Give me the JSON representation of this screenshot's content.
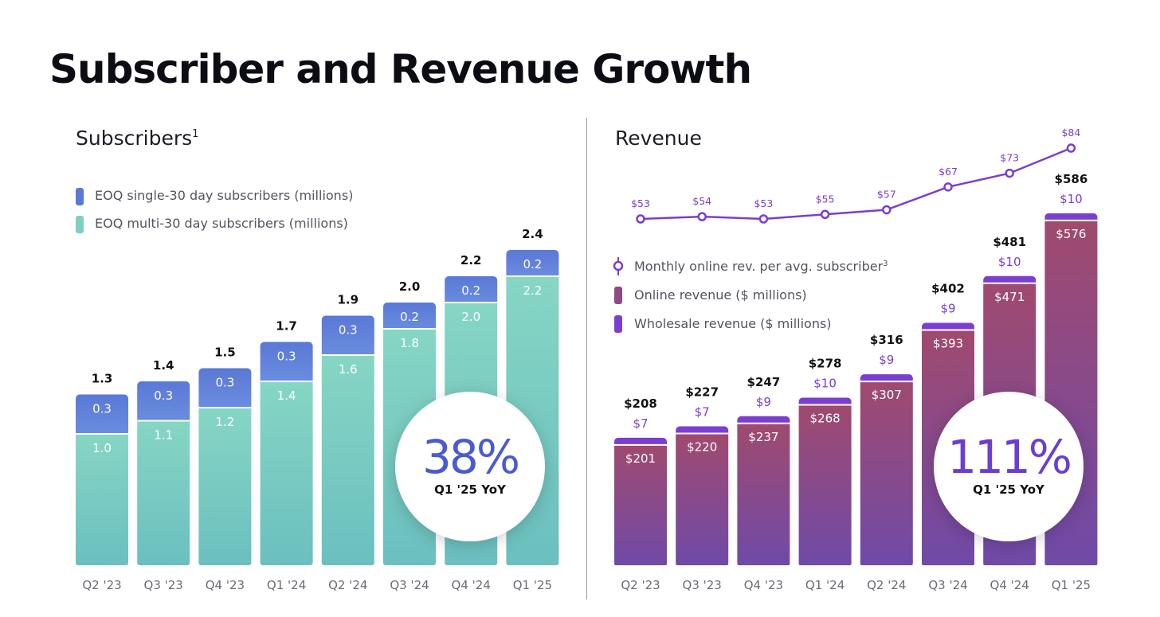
{
  "page": {
    "title": "Subscriber and Revenue Growth"
  },
  "colors": {
    "single_top": "#5a78d6",
    "single_bottom": "#6c8fe0",
    "multi_top": "#86d6c4",
    "multi_bottom": "#6bbfbf",
    "online_top": "#a04a6e",
    "online_bottom": "#6f4aa8",
    "wholesale": "#7b3ed0",
    "line": "#7b3ed0",
    "pct_subscribers": "#4a5ad0",
    "pct_revenue": "#6b3ed0"
  },
  "chart_data": [
    {
      "type": "bar",
      "stacked": true,
      "title": "Subscribers",
      "title_sup": "1",
      "categories": [
        "Q2 '23",
        "Q3 '23",
        "Q4 '23",
        "Q1 '24",
        "Q2 '24",
        "Q3 '24",
        "Q4 '24",
        "Q1 '25"
      ],
      "series": [
        {
          "name": "EOQ multi-30 day subscribers  (millions)",
          "values": [
            1.0,
            1.1,
            1.2,
            1.4,
            1.6,
            1.8,
            2.0,
            2.2
          ],
          "labels": [
            "1.0",
            "1.1",
            "1.2",
            "1.4",
            "1.6",
            "1.8",
            "2.0",
            "2.2"
          ]
        },
        {
          "name": "EOQ single-30 day subscribers (millions)",
          "values": [
            0.3,
            0.3,
            0.3,
            0.3,
            0.3,
            0.2,
            0.2,
            0.2
          ],
          "labels": [
            "0.3",
            "0.3",
            "0.3",
            "0.3",
            "0.3",
            "0.2",
            "0.2",
            "0.2"
          ]
        }
      ],
      "totals": [
        1.3,
        1.4,
        1.5,
        1.7,
        1.9,
        2.0,
        2.2,
        2.4
      ],
      "total_labels": [
        "1.3",
        "1.4",
        "1.5",
        "1.7",
        "1.9",
        "2.0",
        "2.2",
        "2.4"
      ],
      "callout": {
        "value": "38%",
        "label": "Q1 '25 YoY"
      }
    },
    {
      "type": "bar",
      "stacked": true,
      "title": "Revenue",
      "categories": [
        "Q2 '23",
        "Q3 '23",
        "Q4 '23",
        "Q1 '24",
        "Q2 '24",
        "Q3 '24",
        "Q4 '24",
        "Q1 '25"
      ],
      "series": [
        {
          "name": "Online revenue ($ millions)",
          "values": [
            201,
            220,
            237,
            268,
            307,
            393,
            471,
            576
          ],
          "labels": [
            "$201",
            "$220",
            "$237",
            "$268",
            "$307",
            "$393",
            "$471",
            "$576"
          ]
        },
        {
          "name": "Wholesale revenue ($ millions)",
          "values": [
            7,
            7,
            9,
            10,
            9,
            9,
            10,
            10
          ],
          "labels": [
            "$7",
            "$7",
            "$9",
            "$10",
            "$9",
            "$9",
            "$10",
            "$10"
          ]
        }
      ],
      "totals": [
        208,
        227,
        247,
        278,
        316,
        402,
        481,
        586
      ],
      "total_labels": [
        "$208",
        "$227",
        "$247",
        "$278",
        "$316",
        "$402",
        "$481",
        "$586"
      ],
      "line": {
        "type": "line",
        "name": "Monthly online rev. per avg. subscriber",
        "name_sup": "3",
        "values": [
          53,
          54,
          53,
          55,
          57,
          67,
          73,
          84
        ],
        "labels": [
          "$53",
          "$54",
          "$53",
          "$55",
          "$57",
          "$67",
          "$73",
          "$84"
        ]
      },
      "callout": {
        "value": "111%",
        "label": "Q1 '25 YoY"
      }
    }
  ]
}
